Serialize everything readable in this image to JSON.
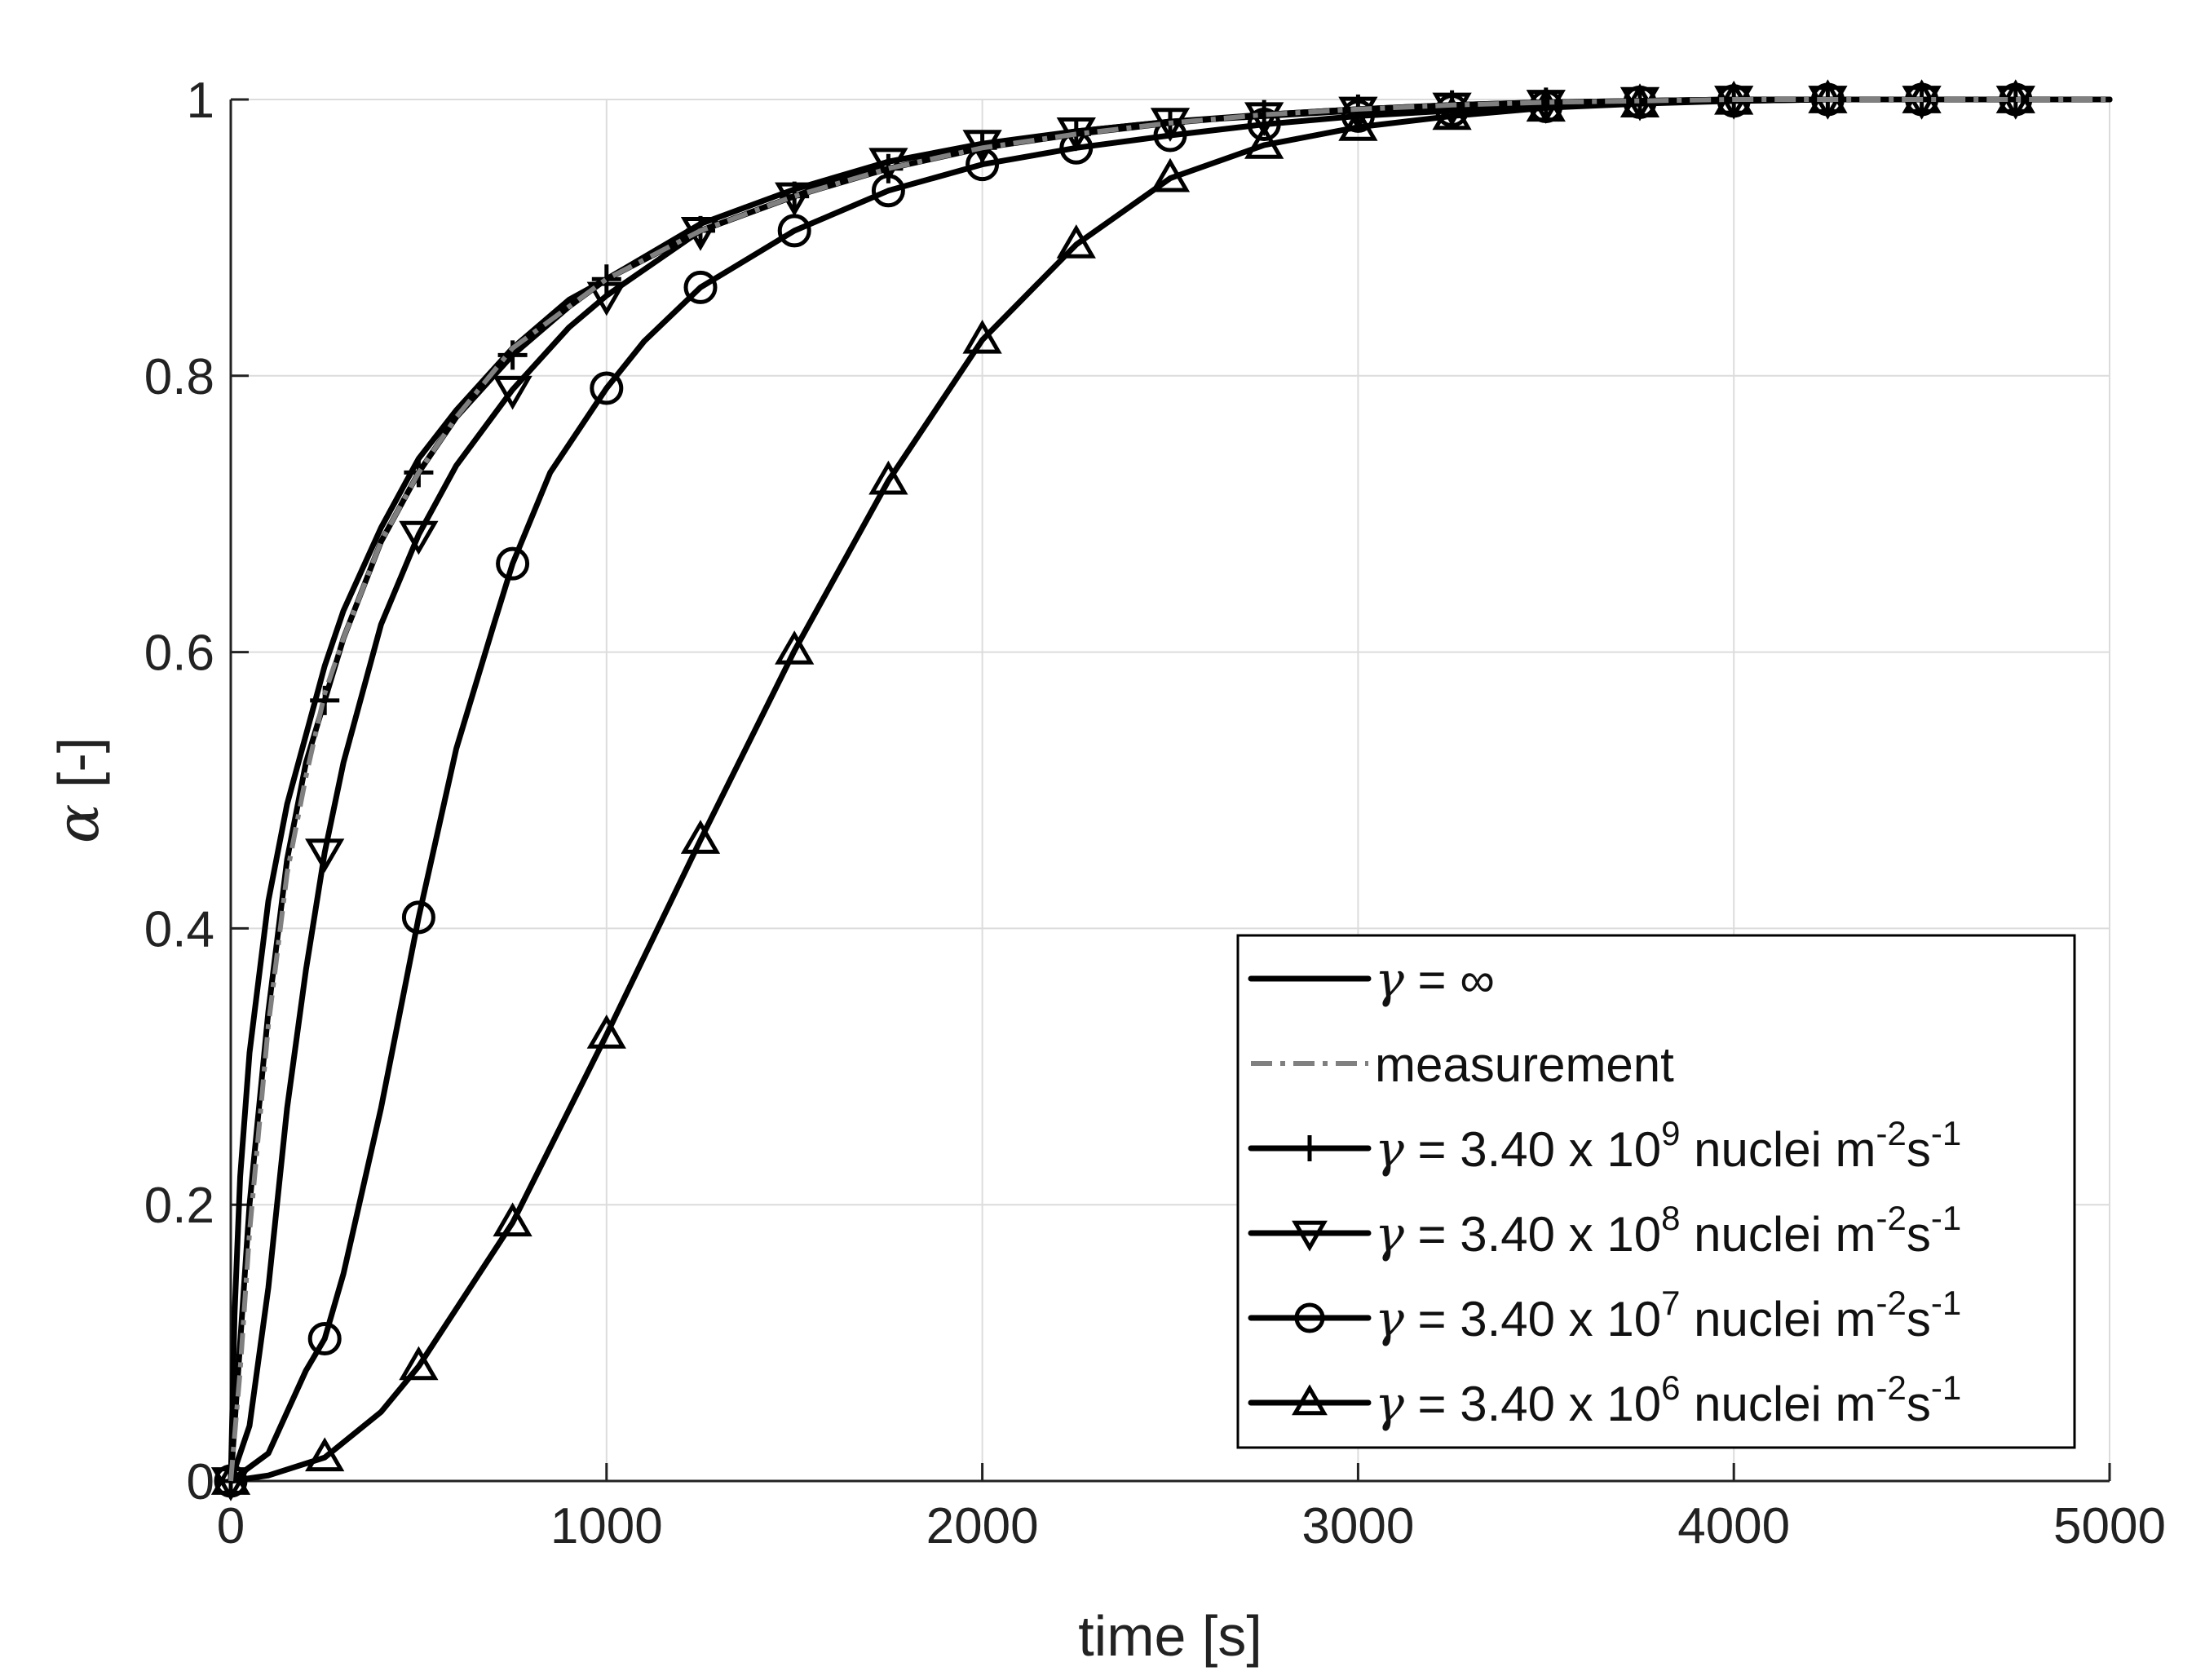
{
  "chart_data": {
    "type": "line",
    "title": "",
    "xlabel": "time [s]",
    "ylabel_symbol": "α",
    "ylabel_unit": "[-]",
    "xlim": [
      0,
      5000
    ],
    "ylim": [
      0,
      1
    ],
    "xticks": [
      0,
      1000,
      2000,
      3000,
      4000,
      5000
    ],
    "yticks": [
      0,
      0.2,
      0.4,
      0.6,
      0.8,
      1
    ],
    "xtick_labels": [
      "0",
      "1000",
      "2000",
      "3000",
      "4000",
      "5000"
    ],
    "ytick_labels": [
      "0",
      "0.2",
      "0.4",
      "0.6",
      "0.8",
      "1"
    ],
    "grid": true,
    "legend_position": "bottom-right",
    "series": [
      {
        "name": "γ = ∞",
        "legend": {
          "sym": "γ",
          "text": " = ∞",
          "exp": "",
          "tail": "",
          "exp2": "",
          "tail2": ""
        },
        "marker": "none",
        "style": "solid",
        "color": "#000000",
        "x": [
          0,
          10,
          25,
          50,
          100,
          150,
          200,
          250,
          300,
          400,
          500,
          600,
          750,
          900,
          1000,
          1250,
          1500,
          1750,
          2000,
          2250,
          2500,
          2750,
          3000,
          3250,
          3500,
          3750,
          4000,
          4250,
          4500,
          4750,
          5000
        ],
        "y": [
          0,
          0.12,
          0.22,
          0.31,
          0.42,
          0.49,
          0.54,
          0.59,
          0.63,
          0.69,
          0.74,
          0.775,
          0.82,
          0.855,
          0.87,
          0.91,
          0.935,
          0.955,
          0.967,
          0.977,
          0.984,
          0.989,
          0.993,
          0.996,
          0.998,
          0.999,
          1.0,
          1.0,
          1.0,
          1.0,
          1.0
        ]
      },
      {
        "name": "measurement",
        "legend": {
          "sym": "",
          "text": "measurement",
          "exp": "",
          "tail": "",
          "exp2": "",
          "tail2": ""
        },
        "marker": "none",
        "style": "dashdot",
        "color": "#808080",
        "x": [
          0,
          25,
          50,
          100,
          150,
          200,
          250,
          300,
          400,
          500,
          600,
          750,
          900,
          1000,
          1250,
          1500,
          1750,
          2000,
          2250,
          2500,
          2750,
          3000,
          3250,
          3500,
          4000,
          4500,
          5000
        ],
        "y": [
          0,
          0.08,
          0.18,
          0.33,
          0.44,
          0.51,
          0.57,
          0.61,
          0.68,
          0.73,
          0.77,
          0.82,
          0.85,
          0.87,
          0.905,
          0.93,
          0.95,
          0.965,
          0.975,
          0.983,
          0.989,
          0.993,
          0.996,
          0.998,
          1.0,
          1.0,
          1.0
        ]
      },
      {
        "name": "γ = 3.40 x 10^9 nuclei m^-2 s^-1",
        "legend": {
          "sym": "γ",
          "text": " = 3.40 x 10",
          "exp": "9",
          "tail": " nuclei m",
          "exp2": "-2",
          "tail2": "s",
          "exp3": "-1"
        },
        "marker": "plus",
        "style": "solid",
        "color": "#000000",
        "x": [
          0,
          25,
          50,
          100,
          150,
          200,
          250,
          300,
          400,
          500,
          600,
          750,
          900,
          1000,
          1250,
          1500,
          1750,
          2000,
          2250,
          2500,
          2750,
          3000,
          3250,
          3500,
          3750,
          4000,
          4250,
          4500,
          4750,
          5000
        ],
        "y": [
          0,
          0.1,
          0.2,
          0.34,
          0.45,
          0.52,
          0.565,
          0.61,
          0.68,
          0.73,
          0.77,
          0.815,
          0.85,
          0.87,
          0.905,
          0.93,
          0.95,
          0.965,
          0.975,
          0.983,
          0.989,
          0.993,
          0.996,
          0.998,
          0.999,
          1.0,
          1.0,
          1.0,
          1.0,
          1.0
        ],
        "marker_x": [
          0,
          250,
          500,
          750,
          1000,
          1250,
          1500,
          1750,
          2000,
          2250,
          2500,
          2750,
          3000,
          3250,
          3500,
          3750,
          4000,
          4250,
          4500,
          4750
        ],
        "marker_y": [
          0,
          0.565,
          0.73,
          0.815,
          0.87,
          0.905,
          0.93,
          0.95,
          0.965,
          0.975,
          0.983,
          0.989,
          0.993,
          0.996,
          0.998,
          0.999,
          1.0,
          1.0,
          1.0,
          1.0
        ]
      },
      {
        "name": "γ = 3.40 x 10^8 nuclei m^-2 s^-1",
        "legend": {
          "sym": "γ",
          "text": " = 3.40 x 10",
          "exp": "8",
          "tail": " nuclei m",
          "exp2": "-2",
          "tail2": "s",
          "exp3": "-1"
        },
        "marker": "triangle-down",
        "style": "solid",
        "color": "#000000",
        "x": [
          0,
          50,
          100,
          150,
          200,
          250,
          300,
          400,
          500,
          600,
          750,
          900,
          1000,
          1250,
          1500,
          1750,
          2000,
          2250,
          2500,
          2750,
          3000,
          3250,
          3500,
          3750,
          4000,
          4250,
          4500,
          4750,
          5000
        ],
        "y": [
          0,
          0.04,
          0.14,
          0.27,
          0.37,
          0.455,
          0.52,
          0.62,
          0.685,
          0.735,
          0.79,
          0.835,
          0.858,
          0.905,
          0.93,
          0.955,
          0.968,
          0.977,
          0.984,
          0.988,
          0.992,
          0.995,
          0.997,
          0.999,
          1.0,
          1.0,
          1.0,
          1.0,
          1.0
        ],
        "marker_x": [
          0,
          250,
          500,
          750,
          1000,
          1250,
          1500,
          1750,
          2000,
          2250,
          2500,
          2750,
          3000,
          3250,
          3500,
          3750,
          4000,
          4250,
          4500,
          4750
        ],
        "marker_y": [
          0,
          0.455,
          0.685,
          0.79,
          0.858,
          0.905,
          0.93,
          0.955,
          0.968,
          0.977,
          0.984,
          0.988,
          0.992,
          0.995,
          0.997,
          0.999,
          1.0,
          1.0,
          1.0,
          1.0
        ]
      },
      {
        "name": "γ = 3.40 x 10^7 nuclei m^-2 s^-1",
        "legend": {
          "sym": "γ",
          "text": " = 3.40 x 10",
          "exp": "7",
          "tail": " nuclei m",
          "exp2": "-2",
          "tail2": "s",
          "exp3": "-1"
        },
        "marker": "circle",
        "style": "solid",
        "color": "#000000",
        "x": [
          0,
          100,
          150,
          200,
          250,
          300,
          400,
          500,
          600,
          700,
          750,
          850,
          1000,
          1100,
          1250,
          1500,
          1750,
          2000,
          2250,
          2500,
          2750,
          3000,
          3250,
          3500,
          3750,
          4000,
          4250,
          4500,
          4750,
          5000
        ],
        "y": [
          0,
          0.02,
          0.05,
          0.08,
          0.103,
          0.15,
          0.27,
          0.408,
          0.53,
          0.62,
          0.664,
          0.73,
          0.791,
          0.825,
          0.864,
          0.905,
          0.934,
          0.953,
          0.965,
          0.974,
          0.982,
          0.988,
          0.992,
          0.995,
          0.998,
          0.999,
          1.0,
          1.0,
          1.0,
          1.0
        ],
        "marker_x": [
          0,
          250,
          500,
          750,
          1000,
          1250,
          1500,
          1750,
          2000,
          2250,
          2500,
          2750,
          3000,
          3250,
          3500,
          3750,
          4000,
          4250,
          4500,
          4750
        ],
        "marker_y": [
          0,
          0.103,
          0.408,
          0.664,
          0.791,
          0.864,
          0.905,
          0.934,
          0.953,
          0.965,
          0.974,
          0.982,
          0.988,
          0.992,
          0.995,
          0.998,
          0.999,
          1.0,
          1.0,
          1.0
        ]
      },
      {
        "name": "γ = 3.40 x 10^6 nuclei m^-2 s^-1",
        "legend": {
          "sym": "γ",
          "text": " = 3.40 x 10",
          "exp": "6",
          "tail": " nuclei m",
          "exp2": "-2",
          "tail2": "s",
          "exp3": "-1"
        },
        "marker": "triangle-up",
        "style": "solid",
        "color": "#000000",
        "x": [
          0,
          100,
          250,
          400,
          500,
          750,
          1000,
          1250,
          1500,
          1750,
          2000,
          2250,
          2500,
          2750,
          3000,
          3250,
          3500,
          3750,
          4000,
          4250,
          4500,
          4750,
          5000
        ],
        "y": [
          0,
          0.004,
          0.017,
          0.05,
          0.083,
          0.187,
          0.323,
          0.464,
          0.601,
          0.724,
          0.826,
          0.895,
          0.943,
          0.967,
          0.98,
          0.988,
          0.994,
          0.997,
          0.999,
          1.0,
          1.0,
          1.0,
          1.0
        ],
        "marker_x": [
          0,
          250,
          500,
          750,
          1000,
          1250,
          1500,
          1750,
          2000,
          2250,
          2500,
          2750,
          3000,
          3250,
          3500,
          3750,
          4000,
          4250,
          4500,
          4750
        ],
        "marker_y": [
          0,
          0.017,
          0.083,
          0.187,
          0.323,
          0.464,
          0.601,
          0.724,
          0.826,
          0.895,
          0.943,
          0.967,
          0.98,
          0.988,
          0.994,
          0.997,
          0.999,
          1.0,
          1.0,
          1.0
        ]
      }
    ]
  }
}
